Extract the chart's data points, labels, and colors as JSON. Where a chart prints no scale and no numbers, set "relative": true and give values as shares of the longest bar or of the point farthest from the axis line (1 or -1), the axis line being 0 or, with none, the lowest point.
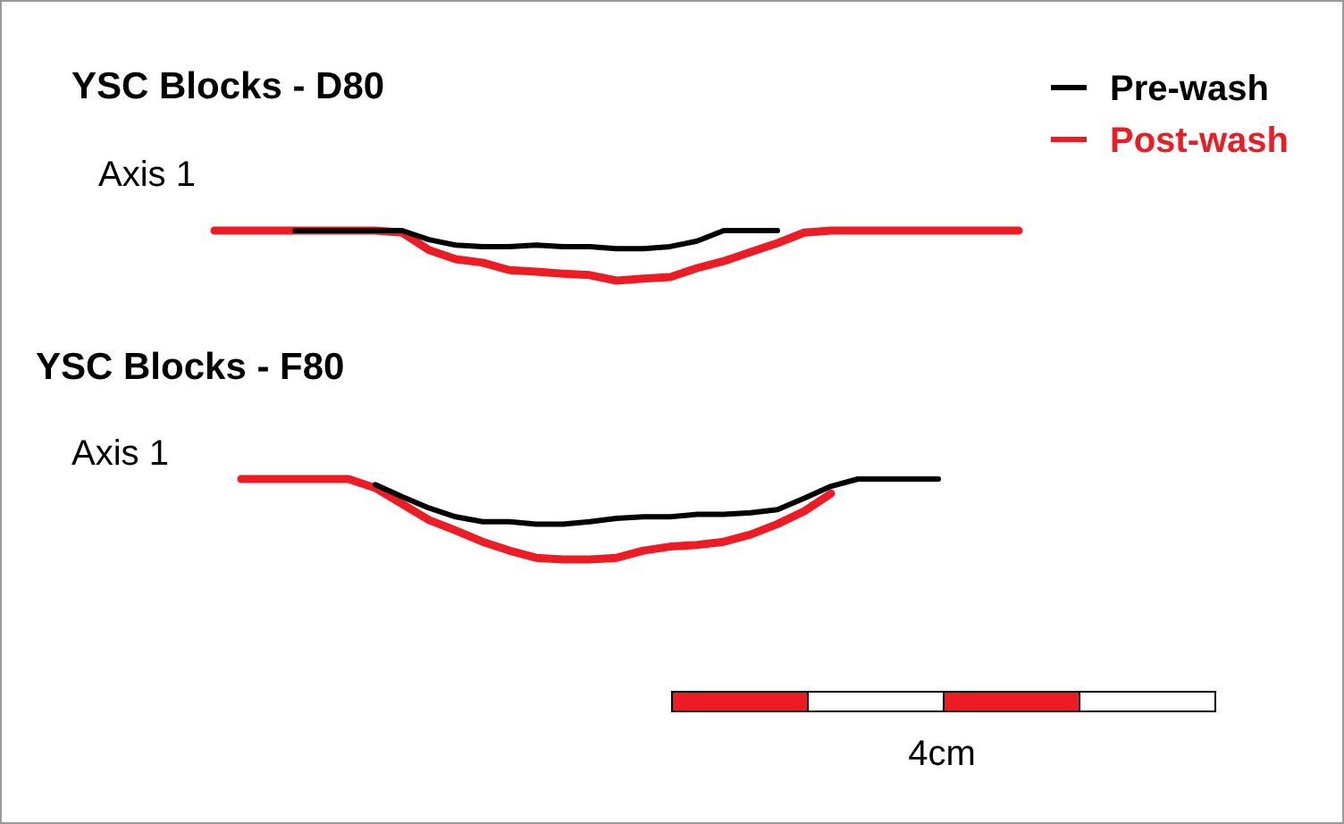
{
  "chart_data": [
    {
      "type": "line",
      "relative": true,
      "title": "YSC Blocks - D80",
      "subtitle": "Axis 1",
      "legend": "top right",
      "line_style": "solid",
      "marker": "none",
      "categories": [
        null,
        null,
        null,
        null,
        null,
        null,
        null,
        null,
        null,
        null,
        null,
        null,
        null,
        null,
        null,
        null,
        null,
        null,
        null,
        null,
        null,
        null,
        null,
        null,
        null,
        null,
        null,
        null,
        null,
        null,
        null
      ],
      "series": [
        {
          "name": "Pre-wash",
          "color": "#000000",
          "values": [
            null,
            null,
            null,
            1,
            1,
            1,
            1,
            1,
            0.82,
            0.71,
            0.68,
            0.68,
            0.71,
            0.68,
            0.68,
            0.64,
            0.64,
            0.68,
            0.79,
            1,
            1,
            1,
            null,
            null,
            null,
            null,
            null,
            null,
            null,
            null,
            null
          ]
        },
        {
          "name": "Post-wash",
          "color": "#ed1c24",
          "values": [
            1,
            1,
            1,
            1,
            1,
            1,
            1,
            0.96,
            0.61,
            0.43,
            0.36,
            0.21,
            0.18,
            0.14,
            0.11,
            0,
            0.04,
            0.07,
            0.25,
            0.39,
            0.57,
            0.75,
            0.96,
            1,
            1,
            1,
            1,
            1,
            1,
            1,
            1
          ]
        }
      ]
    },
    {
      "type": "line",
      "relative": true,
      "title": "YSC Blocks - F80",
      "subtitle": "Axis 1",
      "line_style": "solid",
      "marker": "none",
      "annotations": [
        "4cm"
      ],
      "categories": [
        null,
        null,
        null,
        null,
        null,
        null,
        null,
        null,
        null,
        null,
        null,
        null,
        null,
        null,
        null,
        null,
        null,
        null,
        null,
        null,
        null,
        null,
        null,
        null,
        null,
        null,
        null,
        null,
        null,
        null,
        null
      ],
      "series": [
        {
          "color": "#000000",
          "values": [
            null,
            null,
            null,
            null,
            null,
            null,
            0.93,
            0.78,
            0.64,
            0.53,
            0.47,
            0.47,
            0.44,
            0.44,
            0.47,
            0.51,
            0.53,
            0.53,
            0.56,
            0.56,
            0.58,
            0.62,
            0.76,
            0.91,
            1,
            1,
            1,
            1,
            null,
            null,
            null
          ]
        },
        {
          "color": "#ed1c24",
          "values": [
            null,
            1,
            1,
            1,
            1,
            1,
            0.89,
            0.69,
            0.49,
            0.36,
            0.22,
            0.11,
            0.02,
            0,
            0,
            0.02,
            0.11,
            0.16,
            0.18,
            0.22,
            0.31,
            0.44,
            0.6,
            0.82,
            null,
            null,
            null,
            null,
            null,
            null,
            null
          ]
        }
      ]
    }
  ]
}
